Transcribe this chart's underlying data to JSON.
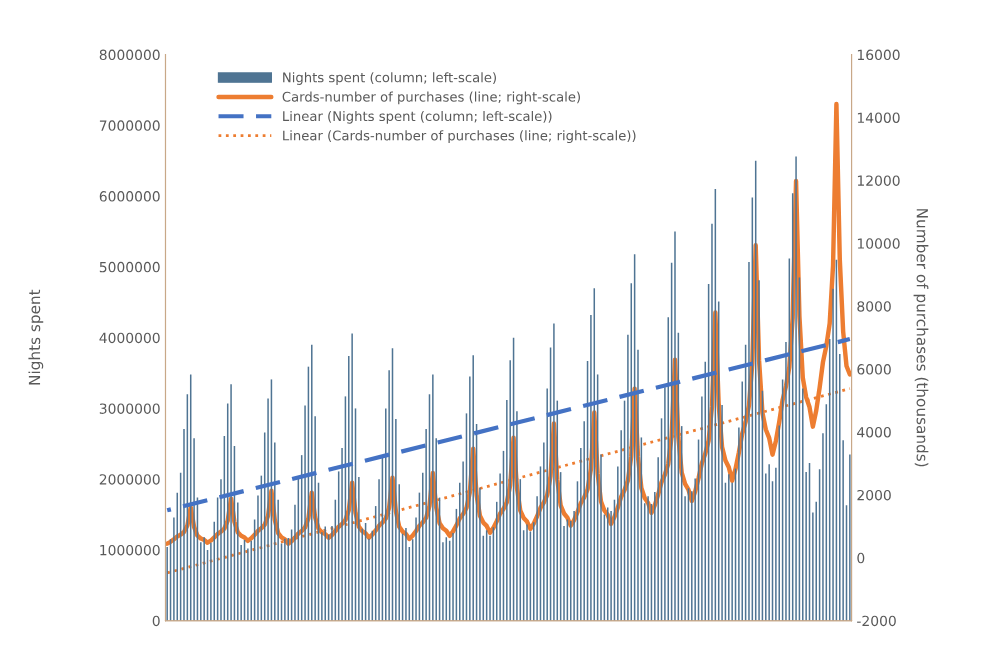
{
  "chart_data": {
    "type": "bar",
    "ylabel": "Nights spent",
    "y2label": "Number of purchases (thousands)",
    "categories": [
      null,
      null,
      null,
      null,
      null,
      null,
      null,
      null,
      null,
      null,
      null,
      null,
      null,
      null,
      null,
      null,
      null,
      null,
      null,
      null,
      null,
      null,
      null,
      null,
      null,
      null,
      null,
      null,
      null,
      null,
      null,
      null,
      null,
      null,
      null,
      null,
      null,
      null,
      null,
      null,
      null,
      null,
      null,
      null,
      null,
      null,
      null,
      null,
      null,
      null,
      null,
      null,
      null,
      null,
      null,
      null,
      null,
      null,
      null,
      null,
      null,
      null,
      null,
      null,
      null,
      null,
      null,
      null,
      null,
      null,
      null,
      null,
      null,
      null,
      null,
      null,
      null,
      null,
      null,
      null,
      null,
      null,
      null,
      null,
      null,
      null,
      null,
      null,
      null,
      null,
      null,
      null,
      null,
      null,
      null,
      null,
      null,
      null,
      null,
      null,
      null,
      null,
      null,
      null,
      null,
      null,
      null,
      null,
      null,
      null,
      null,
      null,
      null,
      null,
      null,
      null,
      null,
      null,
      null,
      null,
      null,
      null,
      null,
      null,
      null,
      null,
      null,
      null,
      null,
      null,
      null,
      null,
      null,
      null,
      null,
      null,
      null,
      null,
      null,
      null,
      null,
      null,
      null,
      null,
      null,
      null,
      null,
      null,
      null,
      null,
      null,
      null,
      null,
      null,
      null,
      null,
      null,
      null,
      null,
      null,
      null,
      null,
      null,
      null,
      null,
      null,
      null,
      null,
      null,
      null,
      null,
      null,
      null,
      null,
      null,
      null,
      null,
      null,
      null,
      null,
      null,
      null,
      null,
      null,
      null,
      null,
      null,
      null,
      null,
      null,
      null,
      null,
      null,
      null,
      null,
      null,
      null,
      null,
      null,
      null,
      null,
      null,
      null,
      null
    ],
    "series": [
      {
        "name": "Nights spent (column; left-scale)",
        "color": "#4f7493",
        "values": [
          1040000,
          1150000,
          1460000,
          1810000,
          2090000,
          2710000,
          3200000,
          3480000,
          2580000,
          1740000,
          1110000,
          1180000,
          1000000,
          1100000,
          1400000,
          1740000,
          2000000,
          2610000,
          3070000,
          3340000,
          2470000,
          1670000,
          1070000,
          1140000,
          1020000,
          1130000,
          1430000,
          1770000,
          2050000,
          2660000,
          3140000,
          3410000,
          2520000,
          1710000,
          1090000,
          1160000,
          1170000,
          1290000,
          1640000,
          2030000,
          2340000,
          3040000,
          3590000,
          3900000,
          2890000,
          1950000,
          1250000,
          1330000,
          1220000,
          1340000,
          1710000,
          2110000,
          2440000,
          3170000,
          3740000,
          4060000,
          3000000,
          2030000,
          1300000,
          1380000,
          1160000,
          1270000,
          1620000,
          2000000,
          2310000,
          3000000,
          3540000,
          3850000,
          2850000,
          1930000,
          1230000,
          1310000,
          1040000,
          1150000,
          1460000,
          1810000,
          2090000,
          2710000,
          3200000,
          3480000,
          2580000,
          1740000,
          1110000,
          1180000,
          1130000,
          1240000,
          1580000,
          1950000,
          2250000,
          2930000,
          3450000,
          3750000,
          2780000,
          1880000,
          1200000,
          1280000,
          1200000,
          1320000,
          1680000,
          2080000,
          2400000,
          3120000,
          3680000,
          4000000,
          2960000,
          2000000,
          1280000,
          1360000,
          1260000,
          1390000,
          1760000,
          2180000,
          2520000,
          3280000,
          3860000,
          4200000,
          3110000,
          2100000,
          1340000,
          1430000,
          1410000,
          1550000,
          1970000,
          2440000,
          2820000,
          3670000,
          4320000,
          4700000,
          3480000,
          2350000,
          1500000,
          1600000,
          1550000,
          1710000,
          2180000,
          2690000,
          3110000,
          4040000,
          4770000,
          5180000,
          3830000,
          2590000,
          1660000,
          1760000,
          1650000,
          1820000,
          2310000,
          2860000,
          3300000,
          4290000,
          5060000,
          5500000,
          4070000,
          2750000,
          1760000,
          1870000,
          1830000,
          2010000,
          2560000,
          3170000,
          3660000,
          4760000,
          5610000,
          6100000,
          4510000,
          3050000,
          1950000,
          2070000,
          1950000,
          2150000,
          2730000,
          3380000,
          3900000,
          5070000,
          5980000,
          6500000,
          4810000,
          3250000,
          2080000,
          2210000,
          1970000,
          2160000,
          2760000,
          3410000,
          3940000,
          5120000,
          6040000,
          6560000,
          4850000,
          3280000,
          2100000,
          2230000,
          1530000,
          1680000,
          2140000,
          2650000,
          3060000,
          3980000,
          4690000,
          5100000,
          3770000,
          2550000,
          1630000,
          2350000
        ]
      },
      {
        "name": "Cards-number of purchases (line; right-scale)",
        "type": "line",
        "axis": "y2",
        "color": "#ed7d31",
        "line_style": "solid",
        "values": [
          450,
          508,
          588,
          680,
          738,
          818,
          1025,
          1600,
          984,
          704,
          614,
          570,
          480,
          550,
          648,
          760,
          830,
          928,
          1180,
          1880,
          1143,
          808,
          701,
          647,
          540,
          620,
          731,
          858,
          938,
          1049,
          1335,
          2130,
          1206,
          786,
          652,
          584,
          450,
          531,
          644,
          774,
          855,
          968,
          1260,
          2070,
          1284,
          926,
          812,
          754,
          640,
          728,
          850,
          990,
          1078,
          1200,
          1515,
          2390,
          1428,
          990,
          850,
          780,
          640,
          736,
          869,
          1022,
          1118,
          1251,
          1595,
          2550,
          1478,
          990,
          834,
          756,
          600,
          705,
          852,
          1020,
          1125,
          1272,
          1650,
          2700,
          1600,
          1100,
          940,
          860,
          700,
          839,
          1032,
          1254,
          1393,
          1586,
          2085,
          3470,
          2002,
          1334,
          1120,
          1014,
          800,
          951,
          1162,
          1404,
          1555,
          1766,
          2310,
          3820,
          2225,
          1500,
          1268,
          1152,
          920,
          1088,
          1322,
          1590,
          1758,
          1992,
          2595,
          4270,
          2483,
          1670,
          1410,
          1280,
          1020,
          1200,
          1452,
          1740,
          1920,
          2172,
          2820,
          4620,
          2673,
          1788,
          1505,
          1363,
          1080,
          1295,
          1596,
          1940,
          2155,
          2456,
          3230,
          5380,
          3208,
          2220,
          1904,
          1746,
          1430,
          1674,
          2014,
          2404,
          2648,
          2988,
          3865,
          6300,
          3831,
          2708,
          2349,
          2169,
          1810,
          2110,
          2529,
          3008,
          3308,
          3727,
          4805,
          7800,
          4858,
          3520,
          3092,
          2878,
          2450,
          2825,
          3349,
          3948,
          4323,
          4847,
          6195,
          9940,
          6277,
          4612,
          4079,
          3813,
          3280,
          3715,
          4324,
          5020,
          5455,
          6064,
          7630,
          11980,
          7685,
          5732,
          5107,
          4795,
          4170,
          4683,
          5401,
          6222,
          6735,
          7453,
          9300,
          14430,
          9500,
          7200,
          6100,
          5830
        ]
      },
      {
        "name": "Linear (Nights spent (column; left-scale))",
        "type": "line",
        "color": "#4472c4",
        "line_style": "dashed",
        "values": [
          1560000,
          null,
          null,
          null,
          null,
          null,
          null,
          null,
          null,
          null,
          null,
          null,
          null,
          null,
          null,
          null,
          null,
          null,
          null,
          null,
          null,
          null,
          null,
          null,
          null,
          null,
          null,
          null,
          null,
          null,
          null,
          null,
          null,
          null,
          null,
          null,
          null,
          null,
          null,
          null,
          null,
          null,
          null,
          null,
          null,
          null,
          null,
          null,
          null,
          null,
          null,
          null,
          null,
          null,
          null,
          null,
          null,
          null,
          null,
          null,
          null,
          null,
          null,
          null,
          null,
          null,
          null,
          null,
          null,
          null,
          null,
          null,
          null,
          null,
          null,
          null,
          null,
          null,
          null,
          null,
          null,
          null,
          null,
          null,
          null,
          null,
          null,
          null,
          null,
          null,
          null,
          null,
          null,
          null,
          null,
          null,
          null,
          null,
          null,
          null,
          null,
          null,
          null,
          null,
          null,
          null,
          null,
          null,
          null,
          null,
          null,
          null,
          null,
          null,
          null,
          null,
          null,
          null,
          null,
          null,
          null,
          null,
          null,
          null,
          null,
          null,
          null,
          null,
          null,
          null,
          null,
          null,
          null,
          null,
          null,
          null,
          null,
          null,
          null,
          null,
          null,
          null,
          null,
          null,
          null,
          null,
          null,
          null,
          null,
          null,
          null,
          null,
          null,
          null,
          null,
          null,
          null,
          null,
          null,
          null,
          null,
          null,
          null,
          null,
          null,
          null,
          null,
          null,
          null,
          null,
          null,
          null,
          null,
          null,
          null,
          null,
          null,
          null,
          null,
          null,
          null,
          null,
          null,
          null,
          null,
          null,
          null,
          null,
          null,
          null,
          null,
          null,
          null,
          null,
          null,
          null,
          null,
          null,
          null,
          null,
          null,
          null,
          null,
          3980000
        ]
      },
      {
        "name": "Linear (Cards-number of purchases (line; right-scale))",
        "type": "line",
        "axis": "y2",
        "color": "#ed7d31",
        "line_style": "dotted",
        "values": [
          -480,
          null,
          null,
          null,
          null,
          null,
          null,
          null,
          null,
          null,
          null,
          null,
          null,
          null,
          null,
          null,
          null,
          null,
          null,
          null,
          null,
          null,
          null,
          null,
          null,
          null,
          null,
          null,
          null,
          null,
          null,
          null,
          null,
          null,
          null,
          null,
          null,
          null,
          null,
          null,
          null,
          null,
          null,
          null,
          null,
          null,
          null,
          null,
          null,
          null,
          null,
          null,
          null,
          null,
          null,
          null,
          null,
          null,
          null,
          null,
          null,
          null,
          null,
          null,
          null,
          null,
          null,
          null,
          null,
          null,
          null,
          null,
          null,
          null,
          null,
          null,
          null,
          null,
          null,
          null,
          null,
          null,
          null,
          null,
          null,
          null,
          null,
          null,
          null,
          null,
          null,
          null,
          null,
          null,
          null,
          null,
          null,
          null,
          null,
          null,
          null,
          null,
          null,
          null,
          null,
          null,
          null,
          null,
          null,
          null,
          null,
          null,
          null,
          null,
          null,
          null,
          null,
          null,
          null,
          null,
          null,
          null,
          null,
          null,
          null,
          null,
          null,
          null,
          null,
          null,
          null,
          null,
          null,
          null,
          null,
          null,
          null,
          null,
          null,
          null,
          null,
          null,
          null,
          null,
          null,
          null,
          null,
          null,
          null,
          null,
          null,
          null,
          null,
          null,
          null,
          null,
          null,
          null,
          null,
          null,
          null,
          null,
          null,
          null,
          null,
          null,
          null,
          null,
          null,
          null,
          null,
          null,
          null,
          null,
          null,
          null,
          null,
          null,
          null,
          null,
          null,
          null,
          null,
          null,
          null,
          null,
          null,
          null,
          null,
          null,
          null,
          null,
          null,
          null,
          null,
          null,
          null,
          null,
          null,
          null,
          null,
          null,
          null,
          5380
        ]
      }
    ],
    "ylim": [
      0,
      8000000
    ],
    "yticks": [
      0,
      1000000,
      2000000,
      3000000,
      4000000,
      5000000,
      6000000,
      7000000,
      8000000
    ],
    "y2lim": [
      -2000,
      16000
    ],
    "y2ticks": [
      -2000,
      0,
      2000,
      4000,
      6000,
      8000,
      10000,
      12000,
      14000,
      16000
    ],
    "grid": false,
    "legend": "top left"
  }
}
